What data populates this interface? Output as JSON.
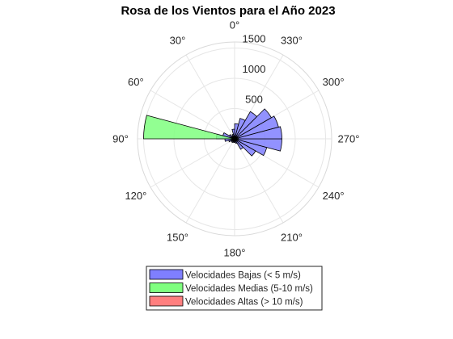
{
  "chart_data": {
    "type": "polar-histogram",
    "title": "Rosa de los Vientos para el Año 2023",
    "theta_zero": "top",
    "theta_direction": "counterclockwise",
    "theta_tick_labels": [
      "0°",
      "30°",
      "60°",
      "90°",
      "120°",
      "150°",
      "180°",
      "210°",
      "240°",
      "270°",
      "300°",
      "330°"
    ],
    "theta_tick_values": [
      0,
      30,
      60,
      90,
      120,
      150,
      180,
      210,
      240,
      270,
      300,
      330
    ],
    "r_ticks": [
      500,
      1000,
      1500
    ],
    "r_tick_labels": [
      "500",
      "1000",
      "1500"
    ],
    "r_lim": [
      0,
      1600
    ],
    "r_tick_label_angle_deg": 0,
    "grid": true,
    "legend_position": "bottom",
    "series": [
      {
        "name": "Velocidades Bajas (< 5 m/s)",
        "color": "#7f7fff",
        "bins": [
          {
            "from": 0,
            "to": 15,
            "r": 160
          },
          {
            "from": 15,
            "to": 30,
            "r": 80
          },
          {
            "from": 30,
            "to": 45,
            "r": 60
          },
          {
            "from": 45,
            "to": 60,
            "r": 100
          },
          {
            "from": 60,
            "to": 75,
            "r": 200
          },
          {
            "from": 75,
            "to": 90,
            "r": 300
          },
          {
            "from": 90,
            "to": 105,
            "r": 160
          },
          {
            "from": 105,
            "to": 120,
            "r": 100
          },
          {
            "from": 120,
            "to": 135,
            "r": 60
          },
          {
            "from": 135,
            "to": 150,
            "r": 70
          },
          {
            "from": 150,
            "to": 165,
            "r": 60
          },
          {
            "from": 165,
            "to": 180,
            "r": 60
          },
          {
            "from": 180,
            "to": 195,
            "r": 60
          },
          {
            "from": 195,
            "to": 210,
            "r": 80
          },
          {
            "from": 210,
            "to": 225,
            "r": 200
          },
          {
            "from": 225,
            "to": 240,
            "r": 400
          },
          {
            "from": 240,
            "to": 255,
            "r": 550
          },
          {
            "from": 255,
            "to": 270,
            "r": 780
          },
          {
            "from": 270,
            "to": 285,
            "r": 780
          },
          {
            "from": 285,
            "to": 300,
            "r": 750
          },
          {
            "from": 300,
            "to": 315,
            "r": 700
          },
          {
            "from": 315,
            "to": 330,
            "r": 520
          },
          {
            "from": 330,
            "to": 345,
            "r": 350
          },
          {
            "from": 345,
            "to": 360,
            "r": 250
          }
        ]
      },
      {
        "name": "Velocidades Medias (5-10 m/s)",
        "color": "#7fff7f",
        "bins": [
          {
            "from": 0,
            "to": 15,
            "r": 30
          },
          {
            "from": 15,
            "to": 30,
            "r": 25
          },
          {
            "from": 30,
            "to": 45,
            "r": 20
          },
          {
            "from": 45,
            "to": 60,
            "r": 30
          },
          {
            "from": 60,
            "to": 75,
            "r": 60
          },
          {
            "from": 75,
            "to": 90,
            "r": 1500
          },
          {
            "from": 90,
            "to": 105,
            "r": 60
          },
          {
            "from": 105,
            "to": 120,
            "r": 30
          },
          {
            "from": 120,
            "to": 135,
            "r": 20
          },
          {
            "from": 135,
            "to": 150,
            "r": 20
          },
          {
            "from": 150,
            "to": 165,
            "r": 20
          },
          {
            "from": 165,
            "to": 180,
            "r": 20
          },
          {
            "from": 180,
            "to": 195,
            "r": 20
          },
          {
            "from": 195,
            "to": 210,
            "r": 20
          },
          {
            "from": 210,
            "to": 225,
            "r": 30
          },
          {
            "from": 225,
            "to": 240,
            "r": 40
          },
          {
            "from": 240,
            "to": 255,
            "r": 50
          },
          {
            "from": 255,
            "to": 270,
            "r": 60
          },
          {
            "from": 270,
            "to": 285,
            "r": 60
          },
          {
            "from": 285,
            "to": 300,
            "r": 50
          },
          {
            "from": 300,
            "to": 315,
            "r": 40
          },
          {
            "from": 315,
            "to": 330,
            "r": 30
          },
          {
            "from": 330,
            "to": 345,
            "r": 30
          },
          {
            "from": 345,
            "to": 360,
            "r": 30
          }
        ]
      },
      {
        "name": "Velocidades Altas (> 10 m/s)",
        "color": "#ff7f7f",
        "bins": [
          {
            "from": 75,
            "to": 90,
            "r": 10
          },
          {
            "from": 255,
            "to": 270,
            "r": 10
          }
        ]
      }
    ]
  }
}
